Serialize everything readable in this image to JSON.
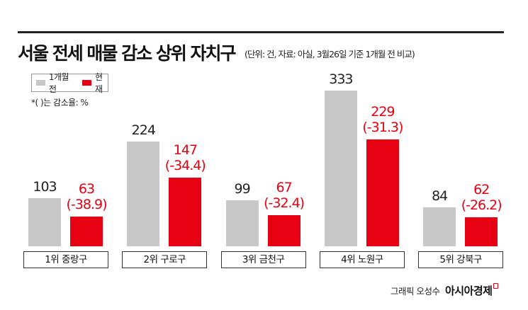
{
  "title": "서울 전세 매물 감소 상위 자치구",
  "subtitle": "(단위: 건, 자료: 아실, 3월26일 기준 1개월 전 비교)",
  "note": "*( )는 감소율: %",
  "credit": {
    "author": "그래픽 오성수",
    "brand": "아시아경제"
  },
  "colors": {
    "prev": "#c8c8c8",
    "now": "#e60012",
    "rule": "#222222"
  },
  "chart_data": {
    "type": "bar",
    "categories": [
      "1위 중랑구",
      "2위 구로구",
      "3위 금천구",
      "4위 노원구",
      "5위 강북구"
    ],
    "series": [
      {
        "name": "1개월전",
        "values": [
          103,
          224,
          99,
          333,
          84
        ],
        "labels": [
          "103",
          "224",
          "99",
          "333",
          "84"
        ]
      },
      {
        "name": "현재",
        "values": [
          63,
          147,
          67,
          229,
          62
        ],
        "labels": [
          "63",
          "147",
          "67",
          "229",
          "62"
        ],
        "rates": [
          "(-38.9)",
          "(-34.4)",
          "(-32.4)",
          "(-31.3)",
          "(-26.2)"
        ]
      }
    ],
    "legend": "top-left",
    "grid": false,
    "ylim": [
      0,
      333
    ]
  }
}
